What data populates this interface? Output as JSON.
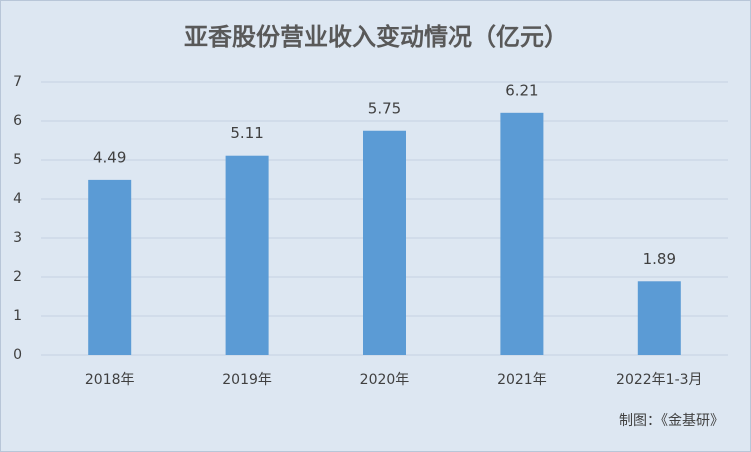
{
  "chart_data": {
    "type": "bar",
    "title": "亚香股份营业收入变动情况（亿元）",
    "categories": [
      "2018年",
      "2019年",
      "2020年",
      "2021年",
      "2022年1-3月"
    ],
    "values": [
      4.49,
      5.11,
      5.75,
      6.21,
      1.89
    ],
    "color": "#5b9bd5",
    "ylim": [
      0,
      7
    ],
    "yticks": [
      0,
      1,
      2,
      3,
      4,
      5,
      6,
      7
    ],
    "grid": true,
    "source": "制图：《金基研》"
  }
}
